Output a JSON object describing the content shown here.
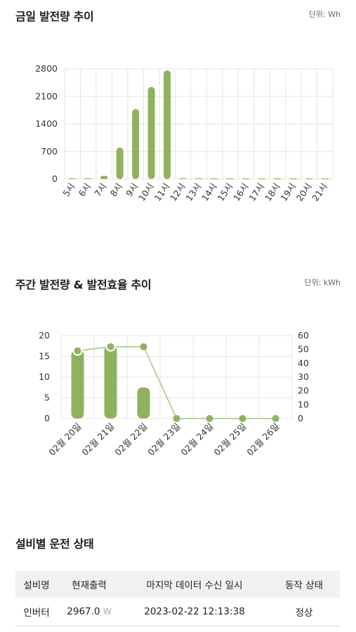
{
  "daily": {
    "title": "금일 발전량 추이",
    "unit": "단위: Wh"
  },
  "weekly": {
    "title": "주간 발전량 & 발전효율 추이",
    "unit": "단위: kWh"
  },
  "equipment": {
    "title": "설비별 운전 상태",
    "headers": [
      "설비명",
      "현재출력",
      "마지막 데이터 수신 일시",
      "동작 상태"
    ],
    "rows": [
      {
        "name": "인버터",
        "output": "2967.0",
        "output_unit": "W",
        "last_received": "2023-02-22 12:13:38",
        "status": "정상"
      }
    ]
  },
  "colors": {
    "bar": "#8fb25f",
    "line": "#a9c587",
    "grid": "#e4e4e4"
  },
  "chart_data": [
    {
      "type": "bar",
      "categories": [
        "5시",
        "6시",
        "7시",
        "8시",
        "9시",
        "10시",
        "11시",
        "12시",
        "13시",
        "14시",
        "15시",
        "16시",
        "17시",
        "18시",
        "19시",
        "20시",
        "21시"
      ],
      "values": [
        5,
        5,
        80,
        800,
        1780,
        2340,
        2760,
        0,
        0,
        0,
        0,
        0,
        0,
        0,
        0,
        0,
        0
      ],
      "ylim": [
        0,
        2800
      ],
      "yticks": [
        "0",
        "700",
        "1400",
        "2100",
        "2800"
      ],
      "grid": true
    },
    {
      "type": "bar",
      "categories": [
        "02월 20일",
        "02월 21일",
        "02월 22일",
        "02월 23일",
        "02월 24일",
        "02월 25일",
        "02월 26일"
      ],
      "series": [
        {
          "type": "bar",
          "axis": "left",
          "values": [
            16.5,
            17.5,
            7.5,
            0,
            0,
            0,
            0
          ]
        },
        {
          "type": "line",
          "axis": "right",
          "values": [
            49,
            52,
            52,
            0,
            0,
            0,
            0
          ]
        }
      ],
      "ylim_left": [
        0,
        20
      ],
      "ylim_right": [
        0,
        60
      ],
      "yticks_left": [
        "0",
        "5",
        "10",
        "15",
        "20"
      ],
      "yticks_right": [
        "0",
        "10",
        "20",
        "30",
        "40",
        "50",
        "60"
      ],
      "grid": true
    }
  ]
}
